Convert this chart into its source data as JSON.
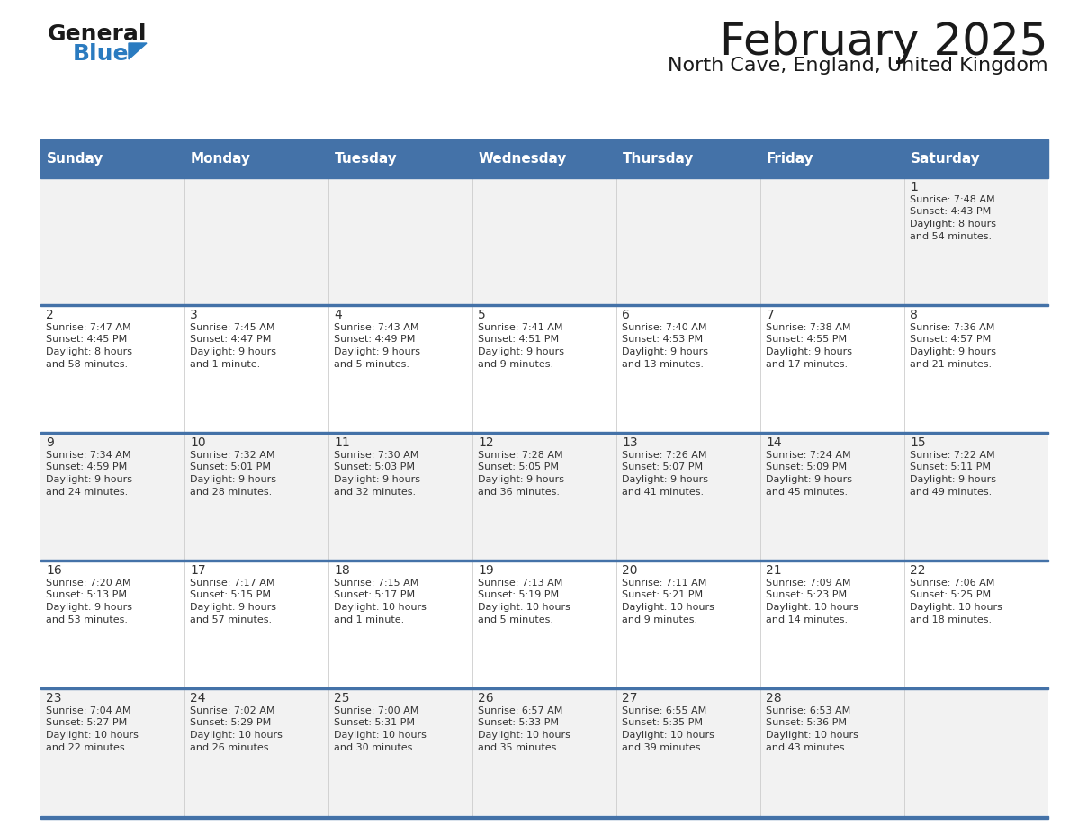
{
  "title": "February 2025",
  "subtitle": "North Cave, England, United Kingdom",
  "header_bg": "#4472A8",
  "header_text": "#FFFFFF",
  "row_bg_odd": "#F2F2F2",
  "row_bg_even": "#FFFFFF",
  "border_color": "#4472A8",
  "day_number_color": "#333333",
  "cell_text_color": "#333333",
  "days_of_week": [
    "Sunday",
    "Monday",
    "Tuesday",
    "Wednesday",
    "Thursday",
    "Friday",
    "Saturday"
  ],
  "calendar_data": [
    [
      null,
      null,
      null,
      null,
      null,
      null,
      {
        "day": "1",
        "sunrise": "7:48 AM",
        "sunset": "4:43 PM",
        "daylight1": "8 hours",
        "daylight2": "and 54 minutes."
      }
    ],
    [
      {
        "day": "2",
        "sunrise": "7:47 AM",
        "sunset": "4:45 PM",
        "daylight1": "8 hours",
        "daylight2": "and 58 minutes."
      },
      {
        "day": "3",
        "sunrise": "7:45 AM",
        "sunset": "4:47 PM",
        "daylight1": "9 hours",
        "daylight2": "and 1 minute."
      },
      {
        "day": "4",
        "sunrise": "7:43 AM",
        "sunset": "4:49 PM",
        "daylight1": "9 hours",
        "daylight2": "and 5 minutes."
      },
      {
        "day": "5",
        "sunrise": "7:41 AM",
        "sunset": "4:51 PM",
        "daylight1": "9 hours",
        "daylight2": "and 9 minutes."
      },
      {
        "day": "6",
        "sunrise": "7:40 AM",
        "sunset": "4:53 PM",
        "daylight1": "9 hours",
        "daylight2": "and 13 minutes."
      },
      {
        "day": "7",
        "sunrise": "7:38 AM",
        "sunset": "4:55 PM",
        "daylight1": "9 hours",
        "daylight2": "and 17 minutes."
      },
      {
        "day": "8",
        "sunrise": "7:36 AM",
        "sunset": "4:57 PM",
        "daylight1": "9 hours",
        "daylight2": "and 21 minutes."
      }
    ],
    [
      {
        "day": "9",
        "sunrise": "7:34 AM",
        "sunset": "4:59 PM",
        "daylight1": "9 hours",
        "daylight2": "and 24 minutes."
      },
      {
        "day": "10",
        "sunrise": "7:32 AM",
        "sunset": "5:01 PM",
        "daylight1": "9 hours",
        "daylight2": "and 28 minutes."
      },
      {
        "day": "11",
        "sunrise": "7:30 AM",
        "sunset": "5:03 PM",
        "daylight1": "9 hours",
        "daylight2": "and 32 minutes."
      },
      {
        "day": "12",
        "sunrise": "7:28 AM",
        "sunset": "5:05 PM",
        "daylight1": "9 hours",
        "daylight2": "and 36 minutes."
      },
      {
        "day": "13",
        "sunrise": "7:26 AM",
        "sunset": "5:07 PM",
        "daylight1": "9 hours",
        "daylight2": "and 41 minutes."
      },
      {
        "day": "14",
        "sunrise": "7:24 AM",
        "sunset": "5:09 PM",
        "daylight1": "9 hours",
        "daylight2": "and 45 minutes."
      },
      {
        "day": "15",
        "sunrise": "7:22 AM",
        "sunset": "5:11 PM",
        "daylight1": "9 hours",
        "daylight2": "and 49 minutes."
      }
    ],
    [
      {
        "day": "16",
        "sunrise": "7:20 AM",
        "sunset": "5:13 PM",
        "daylight1": "9 hours",
        "daylight2": "and 53 minutes."
      },
      {
        "day": "17",
        "sunrise": "7:17 AM",
        "sunset": "5:15 PM",
        "daylight1": "9 hours",
        "daylight2": "and 57 minutes."
      },
      {
        "day": "18",
        "sunrise": "7:15 AM",
        "sunset": "5:17 PM",
        "daylight1": "10 hours",
        "daylight2": "and 1 minute."
      },
      {
        "day": "19",
        "sunrise": "7:13 AM",
        "sunset": "5:19 PM",
        "daylight1": "10 hours",
        "daylight2": "and 5 minutes."
      },
      {
        "day": "20",
        "sunrise": "7:11 AM",
        "sunset": "5:21 PM",
        "daylight1": "10 hours",
        "daylight2": "and 9 minutes."
      },
      {
        "day": "21",
        "sunrise": "7:09 AM",
        "sunset": "5:23 PM",
        "daylight1": "10 hours",
        "daylight2": "and 14 minutes."
      },
      {
        "day": "22",
        "sunrise": "7:06 AM",
        "sunset": "5:25 PM",
        "daylight1": "10 hours",
        "daylight2": "and 18 minutes."
      }
    ],
    [
      {
        "day": "23",
        "sunrise": "7:04 AM",
        "sunset": "5:27 PM",
        "daylight1": "10 hours",
        "daylight2": "and 22 minutes."
      },
      {
        "day": "24",
        "sunrise": "7:02 AM",
        "sunset": "5:29 PM",
        "daylight1": "10 hours",
        "daylight2": "and 26 minutes."
      },
      {
        "day": "25",
        "sunrise": "7:00 AM",
        "sunset": "5:31 PM",
        "daylight1": "10 hours",
        "daylight2": "and 30 minutes."
      },
      {
        "day": "26",
        "sunrise": "6:57 AM",
        "sunset": "5:33 PM",
        "daylight1": "10 hours",
        "daylight2": "and 35 minutes."
      },
      {
        "day": "27",
        "sunrise": "6:55 AM",
        "sunset": "5:35 PM",
        "daylight1": "10 hours",
        "daylight2": "and 39 minutes."
      },
      {
        "day": "28",
        "sunrise": "6:53 AM",
        "sunset": "5:36 PM",
        "daylight1": "10 hours",
        "daylight2": "and 43 minutes."
      },
      null
    ]
  ],
  "logo_color_general": "#1a1a1a",
  "logo_color_blue": "#2a7bc0",
  "logo_triangle_color": "#2a7bc0",
  "title_fontsize": 36,
  "subtitle_fontsize": 16,
  "header_fontsize": 11,
  "day_num_fontsize": 10,
  "cell_fontsize": 8
}
